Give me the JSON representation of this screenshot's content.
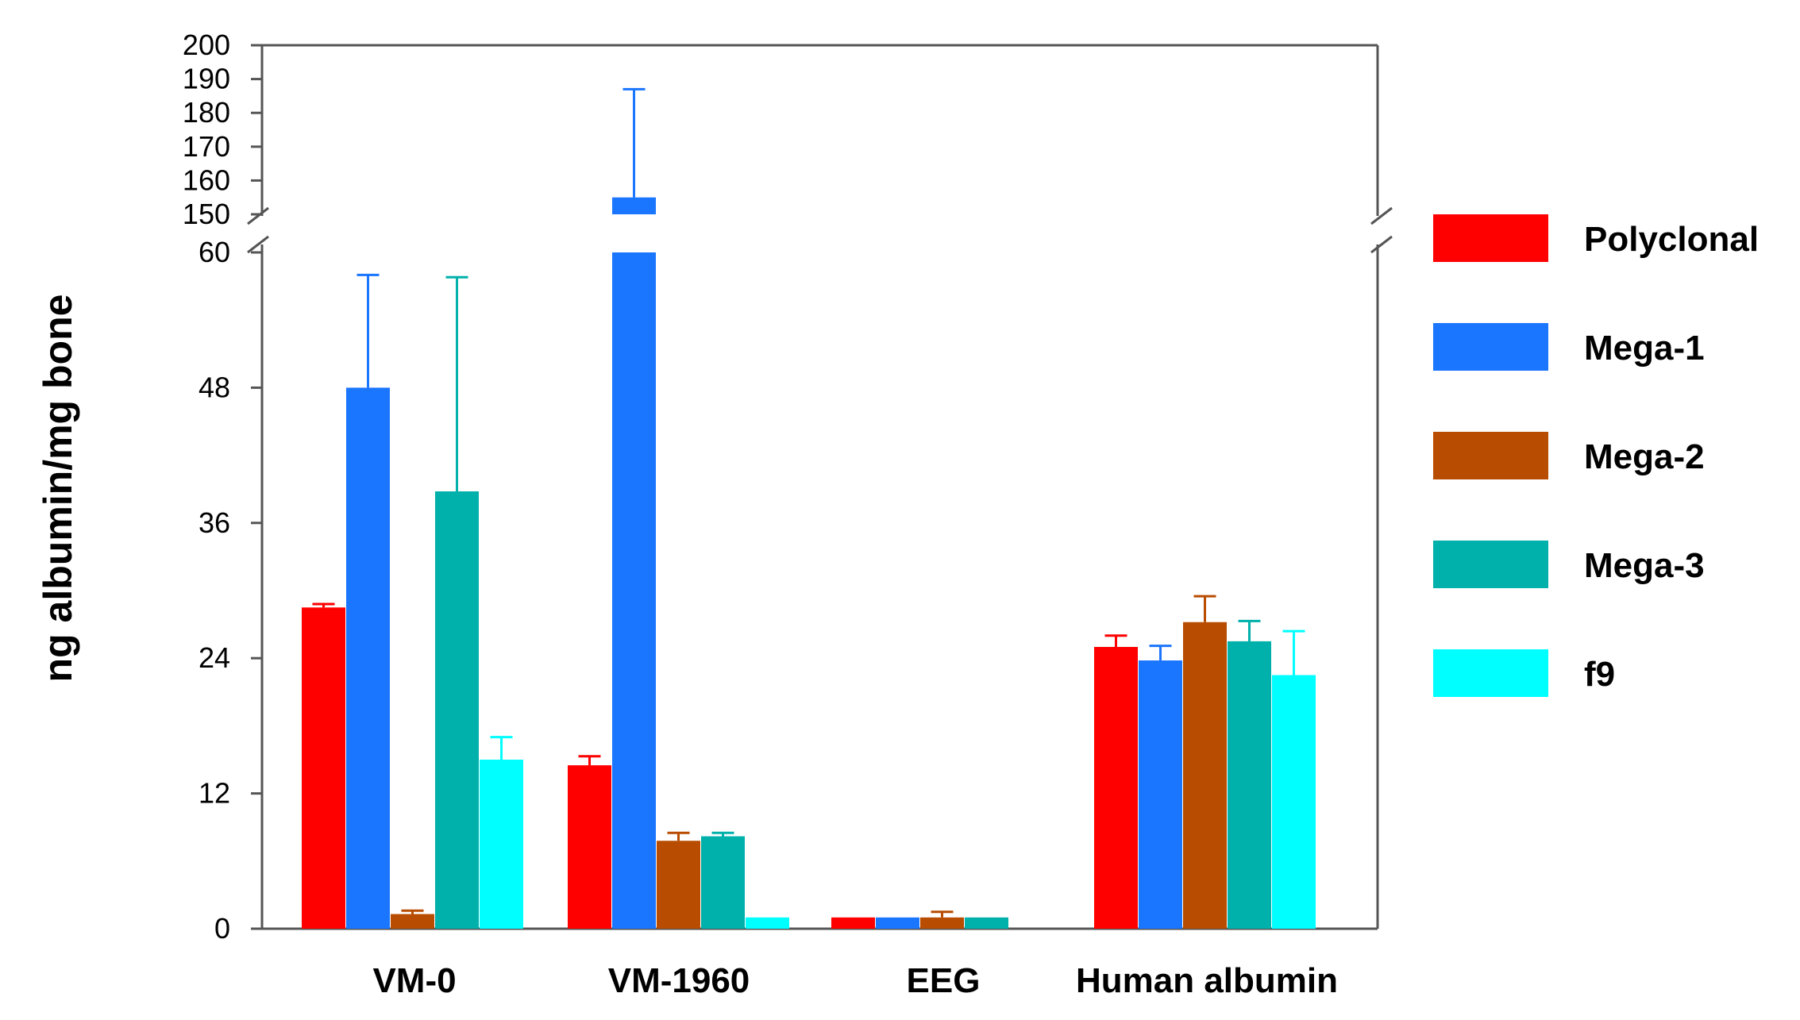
{
  "chart_data": {
    "type": "bar",
    "title": "",
    "xlabel": "",
    "ylabel": "ng albumin/mg bone",
    "categories": [
      "VM-0",
      "VM-1960",
      "EEG",
      "Human albumin"
    ],
    "series": [
      {
        "name": "Polyclonal",
        "color": "#ff0000",
        "values": [
          28.5,
          14.5,
          1.0,
          25.0
        ],
        "errors": [
          0.3,
          0.8,
          0.0,
          1.0
        ]
      },
      {
        "name": "Mega-1",
        "color": "#1a75ff",
        "values": [
          48.0,
          155.0,
          1.0,
          23.8
        ],
        "errors": [
          10.0,
          32.0,
          0.0,
          1.3
        ]
      },
      {
        "name": "Mega-2",
        "color": "#b84c00",
        "values": [
          1.3,
          7.8,
          1.0,
          27.2
        ],
        "errors": [
          0.3,
          0.7,
          0.5,
          2.3
        ]
      },
      {
        "name": "Mega-3",
        "color": "#00b0aa",
        "values": [
          38.8,
          8.2,
          1.0,
          25.5
        ],
        "errors": [
          19.0,
          0.3,
          0.0,
          1.8
        ]
      },
      {
        "name": "f9",
        "color": "#00ffff",
        "values": [
          15.0,
          1.0,
          null,
          22.5
        ],
        "errors": [
          2.0,
          0.0,
          null,
          3.9
        ]
      }
    ],
    "y_axis": {
      "lower_range": [
        0,
        60
      ],
      "lower_ticks": [
        "0",
        "12",
        "24",
        "36",
        "48",
        "60"
      ],
      "upper_range": [
        150,
        200
      ],
      "upper_ticks": [
        "150",
        "160",
        "170",
        "180",
        "190",
        "200"
      ],
      "axis_break": true
    },
    "legend_position": "right",
    "grid": false
  }
}
